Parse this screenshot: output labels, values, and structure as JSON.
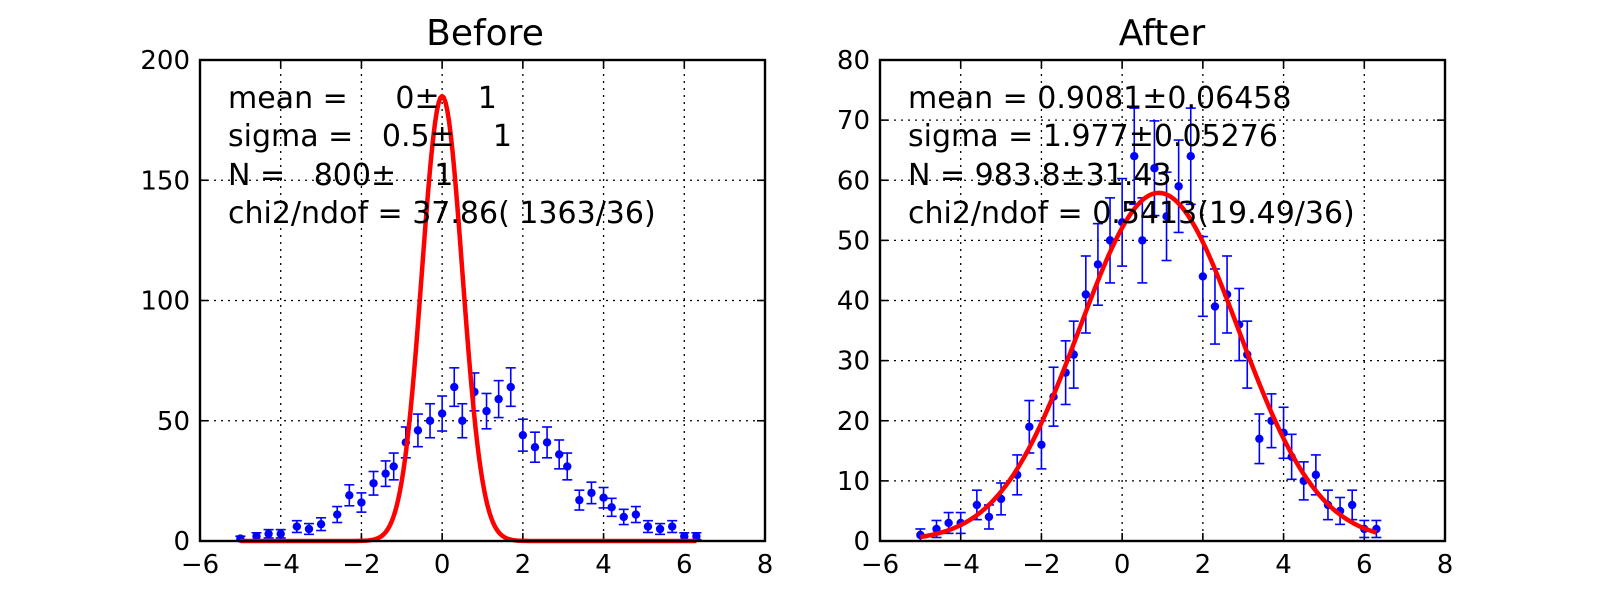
{
  "chart_data": [
    {
      "type": "scatter",
      "title": "Before",
      "xlim": [
        -6,
        8
      ],
      "ylim": [
        0,
        200
      ],
      "xticks": [
        -6,
        -4,
        -2,
        0,
        2,
        4,
        6,
        8
      ],
      "yticks": [
        0,
        50,
        100,
        150,
        200
      ],
      "xtick_labels": [
        "−6",
        "−4",
        "−2",
        "0",
        "2",
        "4",
        "6",
        "8"
      ],
      "ytick_labels": [
        "0",
        "50",
        "100",
        "150",
        "200"
      ],
      "grid": true,
      "stats": [
        "mean =     0±    1",
        "sigma =   0.5±    1",
        "N =   800±    1",
        "chi2/ndof = 37.86( 1363/36)"
      ],
      "x": [
        -5,
        -4.6,
        -4.3,
        -4.0,
        -3.6,
        -3.3,
        -3.0,
        -2.6,
        -2.3,
        -2.0,
        -1.7,
        -1.4,
        -1.2,
        -0.9,
        -0.6,
        -0.3,
        0.0,
        0.3,
        0.5,
        0.8,
        1.1,
        1.4,
        1.7,
        2.0,
        2.3,
        2.6,
        2.9,
        3.1,
        3.4,
        3.7,
        4.0,
        4.2,
        4.5,
        4.8,
        5.1,
        5.4,
        5.7,
        6.0,
        6.3
      ],
      "y": [
        1,
        2,
        3,
        3,
        6,
        5,
        7,
        11,
        19,
        16,
        24,
        28,
        31,
        41,
        46,
        50,
        53,
        64,
        50,
        62,
        54,
        59,
        64,
        44,
        39,
        41,
        36,
        31,
        17,
        20,
        18,
        14,
        10,
        11,
        6,
        5,
        6,
        2,
        2
      ],
      "yerr": "sqrt(y)",
      "fit": {
        "type": "gaussian",
        "mean": 0,
        "sigma": 0.5,
        "peak": 185,
        "color": "#ff0000"
      },
      "point_color": "#0000ff"
    },
    {
      "type": "scatter",
      "title": "After",
      "xlim": [
        -6,
        8
      ],
      "ylim": [
        0,
        80
      ],
      "xticks": [
        -6,
        -4,
        -2,
        0,
        2,
        4,
        6,
        8
      ],
      "yticks": [
        0,
        10,
        20,
        30,
        40,
        50,
        60,
        70,
        80
      ],
      "xtick_labels": [
        "−6",
        "−4",
        "−2",
        "0",
        "2",
        "4",
        "6",
        "8"
      ],
      "ytick_labels": [
        "0",
        "10",
        "20",
        "30",
        "40",
        "50",
        "60",
        "70",
        "80"
      ],
      "grid": true,
      "stats": [
        "mean = 0.9081±0.06458",
        "sigma = 1.977±0.05276",
        "N = 983.8±31.43",
        "chi2/ndof = 0.5413(19.49/36)"
      ],
      "x": [
        -5,
        -4.6,
        -4.3,
        -4.0,
        -3.6,
        -3.3,
        -3.0,
        -2.6,
        -2.3,
        -2.0,
        -1.7,
        -1.4,
        -1.2,
        -0.9,
        -0.6,
        -0.3,
        0.0,
        0.3,
        0.5,
        0.8,
        1.1,
        1.4,
        1.7,
        2.0,
        2.3,
        2.6,
        2.9,
        3.1,
        3.4,
        3.7,
        4.0,
        4.2,
        4.5,
        4.8,
        5.1,
        5.4,
        5.7,
        6.0,
        6.3
      ],
      "y": [
        1,
        2,
        3,
        3,
        6,
        4,
        7,
        11,
        19,
        16,
        24,
        28,
        31,
        41,
        46,
        50,
        53,
        64,
        50,
        62,
        54,
        59,
        64,
        44,
        39,
        41,
        36,
        31,
        17,
        20,
        18,
        14,
        10,
        11,
        6,
        5,
        6,
        2,
        2
      ],
      "yerr": "sqrt(y)",
      "fit": {
        "type": "gaussian",
        "mean": 0.9081,
        "sigma": 1.977,
        "peak": 57.9,
        "color": "#ff0000"
      },
      "point_color": "#0000ff"
    }
  ]
}
